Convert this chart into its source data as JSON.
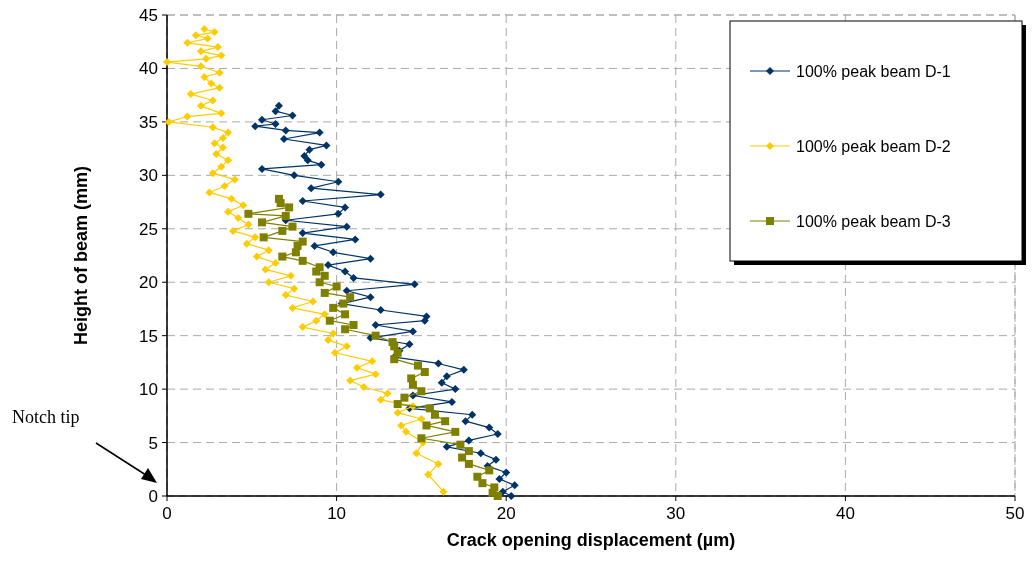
{
  "chart_data": {
    "type": "line",
    "xlabel": "Crack opening displacement (µm)",
    "ylabel": "Height of beam (mm)",
    "xlim": [
      0,
      50
    ],
    "xticks": [
      0,
      10,
      20,
      30,
      40,
      50
    ],
    "ylim": [
      0,
      45
    ],
    "yticks": [
      0,
      5,
      10,
      15,
      20,
      25,
      30,
      35,
      40,
      45
    ],
    "grid": true,
    "legend": "top right",
    "annotations": [
      "Notch tip"
    ],
    "series": [
      {
        "name": "100% peak beam D-1",
        "color": "#003366",
        "marker": "diamond",
        "x": [
          6.6,
          6.4,
          7.4,
          5.6,
          6.4,
          5.2,
          7.0,
          9.0,
          6.9,
          9.4,
          8.4,
          8.1,
          8.3,
          9.1,
          5.6,
          7.5,
          10.1,
          8.5,
          12.6,
          8.0,
          10.5,
          10.1,
          7.0,
          10.6,
          8.0,
          11.1,
          8.7,
          9.8,
          12.0,
          9.5,
          10.5,
          11.0,
          14.6,
          10.6,
          12.0,
          10.3,
          12.6,
          15.3,
          15.2,
          12.3,
          14.5,
          12.0,
          14.3,
          13.7,
          13.4,
          16.0,
          17.5,
          16.5,
          16.2,
          17.0,
          14.5,
          16.8,
          14.3,
          18.0,
          17.6,
          19.0,
          19.5,
          17.8,
          16.5,
          18.5,
          19.4,
          18.9,
          20.0,
          19.6,
          20.5,
          19.8,
          20.3
        ],
        "values": [
          36.5,
          36.0,
          35.6,
          35.2,
          34.8,
          34.6,
          34.2,
          34.0,
          33.4,
          32.8,
          32.4,
          31.8,
          31.4,
          31.0,
          30.6,
          30.0,
          29.4,
          28.8,
          28.2,
          27.6,
          27.0,
          26.4,
          25.8,
          25.2,
          24.6,
          24.0,
          23.4,
          22.8,
          22.2,
          21.6,
          21.0,
          20.4,
          19.8,
          19.2,
          18.6,
          18.0,
          17.4,
          16.8,
          16.4,
          16.0,
          15.4,
          14.8,
          14.2,
          13.6,
          13.0,
          12.4,
          11.8,
          11.2,
          10.6,
          10.0,
          9.4,
          8.8,
          8.2,
          7.6,
          7.0,
          6.4,
          5.8,
          5.2,
          4.6,
          4.0,
          3.4,
          2.8,
          2.2,
          1.6,
          1.0,
          0.4,
          0.0
        ]
      },
      {
        "name": "100% peak beam D-2",
        "color": "#ffcc00",
        "marker": "diamond",
        "x": [
          2.2,
          2.8,
          1.7,
          2.4,
          1.2,
          3.0,
          2.0,
          3.2,
          2.3,
          0.0,
          2.0,
          3.1,
          2.2,
          2.6,
          3.1,
          1.4,
          2.7,
          2.0,
          3.2,
          1.2,
          0.1,
          2.7,
          3.6,
          3.3,
          2.8,
          3.3,
          2.9,
          3.6,
          3.2,
          2.7,
          4.0,
          3.4,
          2.5,
          3.8,
          4.5,
          3.6,
          4.2,
          4.8,
          3.9,
          5.2,
          4.7,
          6.0,
          5.3,
          6.4,
          5.8,
          7.3,
          6.0,
          7.5,
          7.0,
          8.6,
          7.4,
          9.3,
          8.8,
          8.0,
          9.8,
          9.5,
          10.6,
          9.9,
          12.1,
          11.2,
          12.3,
          10.8,
          11.6,
          13.0,
          12.6,
          14.5,
          13.6,
          15.0,
          13.8,
          14.1,
          15.1,
          14.7,
          16.0,
          15.4,
          16.3
        ],
        "values": [
          43.7,
          43.4,
          43.1,
          42.8,
          42.4,
          42.0,
          41.6,
          41.2,
          40.9,
          40.6,
          40.2,
          39.6,
          39.2,
          38.6,
          38.2,
          37.6,
          37.0,
          36.5,
          35.8,
          35.5,
          35.0,
          34.5,
          34.0,
          33.5,
          33.0,
          32.6,
          32.0,
          31.4,
          30.8,
          30.2,
          29.6,
          29.0,
          28.4,
          27.8,
          27.2,
          26.6,
          26.0,
          25.4,
          24.8,
          24.2,
          23.6,
          23.0,
          22.4,
          21.8,
          21.2,
          20.6,
          20.0,
          19.4,
          18.8,
          18.2,
          17.6,
          17.0,
          16.4,
          15.8,
          15.2,
          14.6,
          14.0,
          13.4,
          12.6,
          12.0,
          11.4,
          10.8,
          10.2,
          9.6,
          9.0,
          8.4,
          7.8,
          7.2,
          6.6,
          6.0,
          5.0,
          4.0,
          3.0,
          2.0,
          0.4
        ]
      },
      {
        "name": "100% peak beam D-3",
        "color": "#808000",
        "marker": "square",
        "x": [
          6.6,
          6.7,
          7.2,
          4.8,
          7.0,
          5.6,
          7.4,
          6.8,
          5.7,
          8.0,
          7.7,
          7.6,
          6.8,
          8.0,
          9.0,
          8.8,
          9.3,
          9.0,
          10.0,
          9.3,
          10.8,
          10.4,
          9.8,
          10.5,
          9.6,
          11.0,
          10.5,
          12.3,
          13.3,
          13.4,
          13.6,
          13.4,
          14.8,
          15.2,
          14.4,
          14.5,
          15.0,
          14.0,
          13.6,
          15.5,
          15.8,
          16.4,
          15.3,
          17.0,
          15.0,
          17.3,
          17.8,
          17.4,
          17.8,
          19.0,
          18.3,
          18.6,
          19.3,
          19.2,
          19.5
        ],
        "values": [
          27.8,
          27.4,
          27.0,
          26.4,
          26.2,
          25.6,
          25.2,
          24.8,
          24.2,
          23.8,
          23.4,
          22.8,
          22.4,
          22.0,
          21.4,
          21.0,
          20.6,
          20.0,
          19.6,
          19.0,
          18.6,
          18.0,
          17.6,
          17.0,
          16.4,
          16.0,
          15.6,
          15.0,
          14.4,
          14.0,
          13.4,
          12.8,
          12.2,
          11.6,
          11.0,
          10.4,
          9.8,
          9.2,
          8.6,
          8.2,
          7.6,
          7.0,
          6.6,
          6.0,
          5.4,
          4.8,
          4.2,
          3.6,
          3.0,
          2.4,
          1.8,
          1.2,
          0.8,
          0.3,
          0.0
        ]
      }
    ]
  }
}
